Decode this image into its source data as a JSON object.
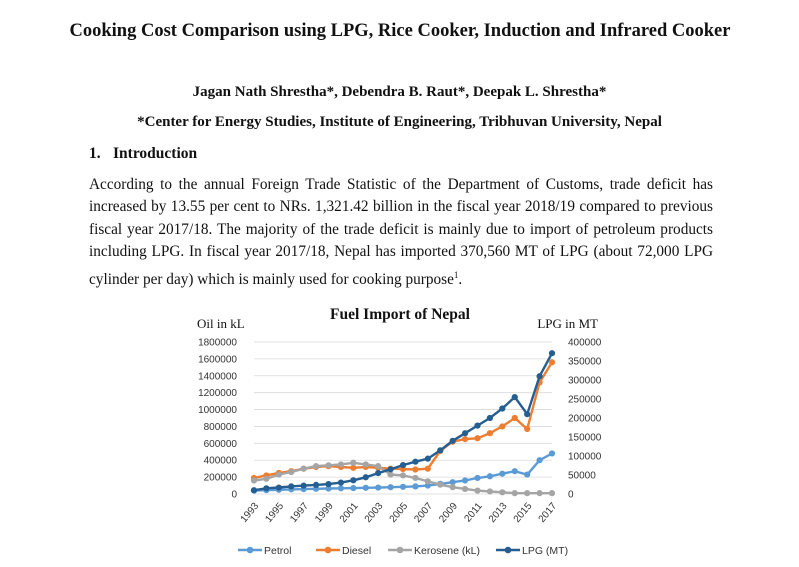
{
  "paper": {
    "title": "Cooking Cost Comparison using LPG, Rice Cooker, Induction and Infrared Cooker",
    "authors": "Jagan Nath Shrestha*, Debendra B. Raut*, Deepak L. Shrestha*",
    "affiliation": "*Center for Energy Studies, Institute of Engineering, Tribhuvan University, Nepal",
    "section_number": "1.",
    "section_title": "Introduction",
    "paragraph": "According to the annual Foreign Trade Statistic of the Department of Customs, trade deficit has increased by 13.55 per cent to NRs. 1,321.42 billion in the fiscal year 2018/19 compared to previous fiscal year 2017/18. The majority of the trade deficit is mainly due to import of petroleum products including LPG. In fiscal year 2017/18, Nepal has imported 370,560 MT of LPG (about 72,000 LPG cylinder per day) which is mainly used for cooking purpose",
    "footnote_marker": "1",
    "paragraph_end": "."
  },
  "chart_data": {
    "type": "line",
    "title": "Fuel Import of Nepal",
    "ylabel_left": "Oil in kL",
    "ylabel_right": "LPG in MT",
    "ylim_left": [
      0,
      1800000
    ],
    "ylim_right": [
      0,
      400000
    ],
    "yticks_left": [
      "1800000",
      "1600000",
      "1400000",
      "1200000",
      "1000000",
      "800000",
      "600000",
      "400000",
      "200000",
      "0"
    ],
    "yticks_right": [
      "400000",
      "350000",
      "300000",
      "250000",
      "200000",
      "150000",
      "100000",
      "50000",
      "0"
    ],
    "xtick_labels": [
      "1993",
      "1995",
      "1997",
      "1999",
      "2001",
      "2003",
      "2005",
      "2007",
      "2009",
      "2011",
      "2013",
      "2015",
      "2017"
    ],
    "x": [
      1993,
      1994,
      1995,
      1996,
      1997,
      1998,
      1999,
      2000,
      2001,
      2002,
      2003,
      2004,
      2005,
      2006,
      2007,
      2008,
      2009,
      2010,
      2011,
      2012,
      2013,
      2014,
      2015,
      2016,
      2017
    ],
    "legend_position": "bottom",
    "grid": true,
    "series": [
      {
        "name": "Petrol",
        "axis": "left",
        "color": "#5b9bd5",
        "values": [
          40000,
          45000,
          50000,
          55000,
          58000,
          62000,
          65000,
          68000,
          70000,
          73000,
          76000,
          80000,
          85000,
          90000,
          100000,
          120000,
          140000,
          160000,
          190000,
          210000,
          240000,
          270000,
          230000,
          400000,
          480000
        ]
      },
      {
        "name": "Diesel",
        "axis": "left",
        "color": "#ed7d31",
        "values": [
          190000,
          220000,
          250000,
          270000,
          300000,
          320000,
          330000,
          320000,
          310000,
          320000,
          310000,
          300000,
          295000,
          290000,
          300000,
          510000,
          620000,
          650000,
          660000,
          720000,
          800000,
          900000,
          770000,
          1320000,
          1560000
        ]
      },
      {
        "name": "Kerosene (kL)",
        "axis": "left",
        "color": "#a5a5a5",
        "values": [
          160000,
          180000,
          230000,
          260000,
          300000,
          330000,
          340000,
          350000,
          370000,
          350000,
          330000,
          230000,
          220000,
          190000,
          150000,
          110000,
          80000,
          60000,
          40000,
          30000,
          20000,
          10000,
          10000,
          10000,
          10000
        ]
      },
      {
        "name": "LPG (MT)",
        "axis": "right",
        "color": "#255e91",
        "values": [
          10000,
          15000,
          17000,
          20000,
          22000,
          24000,
          26000,
          30000,
          36000,
          44000,
          55000,
          65000,
          76000,
          85000,
          93000,
          115000,
          140000,
          160000,
          180000,
          200000,
          225000,
          255000,
          210000,
          310000,
          370560
        ]
      }
    ]
  }
}
